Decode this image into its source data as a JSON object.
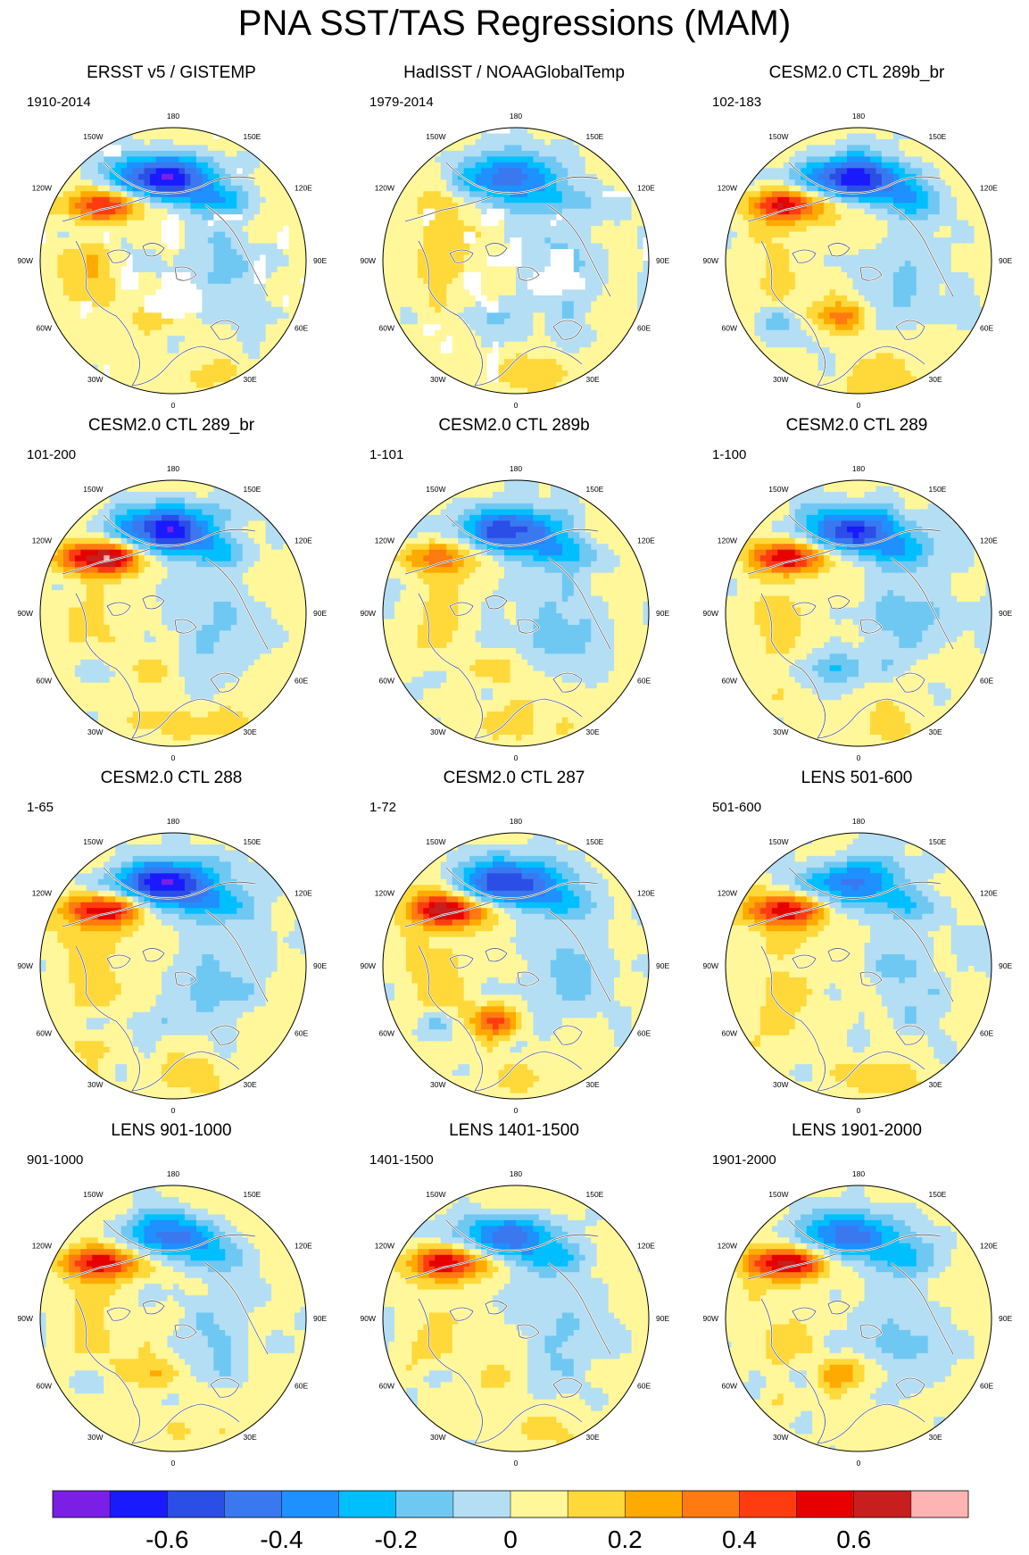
{
  "title": "PNA SST/TAS Regressions (MAM)",
  "chart_data": {
    "type": "heatmap",
    "projection": "north-polar-stereographic",
    "title": "PNA SST/TAS Regressions (MAM)",
    "longitude_labels": [
      "180",
      "150E",
      "120E",
      "90E",
      "60E",
      "30E",
      "0",
      "30W",
      "60W",
      "90W",
      "120W",
      "150W"
    ],
    "colorbar": {
      "colors": [
        "#7b1fe6",
        "#1a1aff",
        "#2b4ee6",
        "#3a78f0",
        "#1e90ff",
        "#00bfff",
        "#6fc8f2",
        "#b4def4",
        "#fff799",
        "#ffd83a",
        "#ffaa00",
        "#ff7a10",
        "#ff3c10",
        "#e60000",
        "#c81e1e",
        "#ffb4b4"
      ],
      "tick_labels": [
        "-0.6",
        "-0.4",
        "-0.2",
        "0",
        "0.2",
        "0.4",
        "0.6"
      ],
      "tick_values": [
        -0.6,
        -0.4,
        -0.2,
        0,
        0.2,
        0.4,
        0.6
      ],
      "range": [
        -0.8,
        0.8
      ]
    },
    "panels": [
      {
        "title": "ERSST v5 / GISTEMP",
        "years": "1910-2014",
        "neg_strength": 0.7,
        "pos_strength": 0.45,
        "atl_dipole": 0.15,
        "missing": true
      },
      {
        "title": "HadISST / NOAAGlobalTemp",
        "years": "1979-2014",
        "neg_strength": 0.5,
        "pos_strength": 0.15,
        "atl_dipole": -0.15,
        "missing": true
      },
      {
        "title": "CESM2.0 CTL 289b_br",
        "years": "102-183",
        "neg_strength": 0.65,
        "pos_strength": 0.55,
        "atl_dipole": 0.35,
        "missing": false
      },
      {
        "title": "CESM2.0 CTL 289_br",
        "years": "101-200",
        "neg_strength": 0.7,
        "pos_strength": 0.7,
        "atl_dipole": 0.2,
        "missing": false
      },
      {
        "title": "CESM2.0 CTL 289b",
        "years": "1-101",
        "neg_strength": 0.6,
        "pos_strength": 0.35,
        "atl_dipole": 0.15,
        "missing": false
      },
      {
        "title": "CESM2.0 CTL 289",
        "years": "1-100",
        "neg_strength": 0.6,
        "pos_strength": 0.6,
        "atl_dipole": -0.2,
        "missing": false
      },
      {
        "title": "CESM2.0 CTL 288",
        "years": "1-65",
        "neg_strength": 0.7,
        "pos_strength": 0.6,
        "atl_dipole": -0.15,
        "missing": false
      },
      {
        "title": "CESM2.0 CTL 287",
        "years": "1-72",
        "neg_strength": 0.6,
        "pos_strength": 0.6,
        "atl_dipole": 0.35,
        "missing": false
      },
      {
        "title": "LENS 501-600",
        "years": "501-600",
        "neg_strength": 0.5,
        "pos_strength": 0.5,
        "atl_dipole": 0.0,
        "missing": false
      },
      {
        "title": "LENS 901-1000",
        "years": "901-1000",
        "neg_strength": 0.5,
        "pos_strength": 0.55,
        "atl_dipole": 0.2,
        "missing": false
      },
      {
        "title": "LENS 1401-1500",
        "years": "1401-1500",
        "neg_strength": 0.5,
        "pos_strength": 0.55,
        "atl_dipole": 0.15,
        "missing": false
      },
      {
        "title": "LENS 1901-2000",
        "years": "1901-2000",
        "neg_strength": 0.5,
        "pos_strength": 0.6,
        "atl_dipole": 0.25,
        "missing": false
      }
    ]
  }
}
